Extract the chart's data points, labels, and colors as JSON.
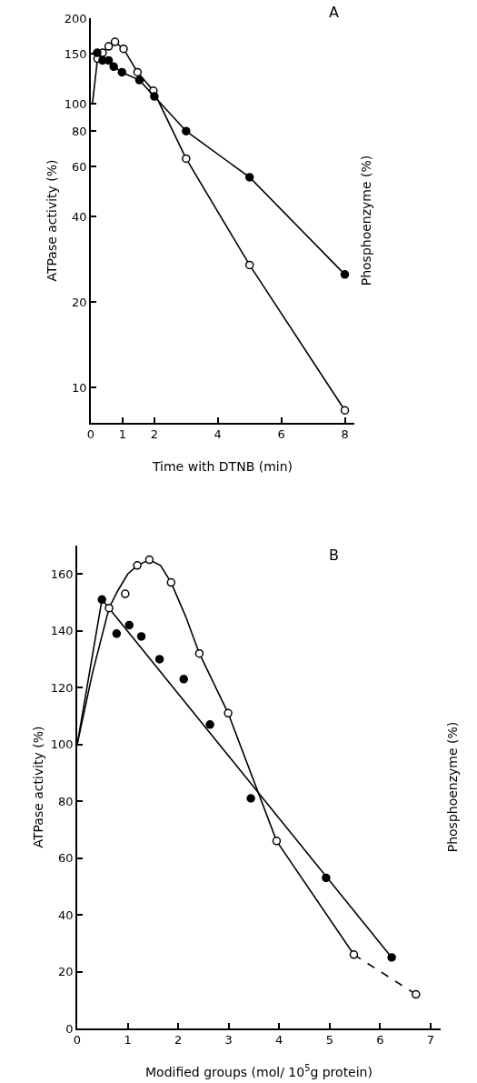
{
  "chart_data": [
    {
      "type": "line",
      "title": "A",
      "xlabel": "Time with DTNB (min)",
      "ylabel": "ATPase activity (%)",
      "y2label": "Phosphoenzyme (%)",
      "log": "y",
      "grid": false,
      "xlim": [
        0,
        8.3
      ],
      "xticks": [
        0,
        1,
        2,
        4,
        6,
        8
      ],
      "ylim": [
        7.5,
        200
      ],
      "yticks": [
        10,
        20,
        40,
        60,
        80,
        100,
        150,
        200
      ],
      "series": [
        {
          "marker": "none",
          "color": "#000000",
          "x": [
            0.05,
            0.21
          ],
          "values": [
            100,
            144
          ]
        },
        {
          "marker": "none",
          "color": "#000000",
          "x": [
            0.21,
            0.37,
            0.56,
            0.76,
            1.03,
            1.47,
            1.97,
            3,
            5,
            8
          ],
          "values": [
            144,
            151,
            159,
            165,
            156,
            129,
            111,
            64,
            27,
            8.3
          ]
        },
        {
          "type": "scatter",
          "marker": "circle",
          "color": "#ffffff",
          "x": [
            0.21,
            0.37,
            0.56,
            0.76,
            1.03,
            1.47,
            1.97,
            3,
            5,
            8
          ],
          "values": [
            144,
            151,
            159,
            165,
            156,
            129,
            111,
            64,
            27,
            8.3
          ]
        },
        {
          "marker": "circle",
          "color": "#000000",
          "x": [
            0.2,
            0.37,
            0.56,
            0.72,
            0.98,
            1.53,
            2,
            3,
            5,
            8
          ],
          "values": [
            151,
            142,
            142,
            135,
            129,
            121,
            106,
            80,
            55,
            25
          ]
        }
      ]
    },
    {
      "type": "line",
      "title": "B",
      "xlabel": "Modified groups (mol/ 10$^{5}$g protein)",
      "ylabel": "ATPase activity (%)",
      "y2label": "Phosphoenzyme (%)",
      "grid": false,
      "xlim": [
        0,
        7.2
      ],
      "xticks": [
        0,
        1,
        2,
        3,
        4,
        5,
        6,
        7
      ],
      "ylim": [
        0,
        170
      ],
      "yticks": [
        0,
        20,
        40,
        60,
        80,
        100,
        120,
        140,
        160
      ],
      "series": [
        {
          "marker": "none",
          "color": "#000000",
          "x": [
            0,
            0.49,
            6.23
          ],
          "values": [
            100,
            151,
            25
          ]
        },
        {
          "type": "scatter",
          "marker": "circle",
          "color": "#000000",
          "x": [
            0.49,
            0.78,
            1.03,
            1.27,
            1.63,
            2.11,
            2.63,
            3.44,
            4.93,
            6.23
          ],
          "values": [
            151,
            139,
            142,
            138,
            130,
            123,
            107,
            81,
            53,
            25
          ]
        },
        {
          "marker": "none",
          "color": "#000000",
          "x": [
            0,
            0.3,
            0.63,
            0.8,
            1,
            1.19,
            1.43,
            1.65,
            1.86,
            2.15,
            2.42,
            2.99,
            3.95,
            5.48
          ],
          "values": [
            100,
            125,
            148,
            154,
            160,
            163,
            165,
            163,
            157,
            145,
            132,
            111,
            66,
            26
          ]
        },
        {
          "marker": "none",
          "line_style": "dashed",
          "color": "#000000",
          "x": [
            5.48,
            6.71
          ],
          "values": [
            26,
            12
          ]
        },
        {
          "type": "scatter",
          "marker": "circle",
          "color": "#ffffff",
          "x": [
            0.63,
            0.95,
            1.19,
            1.43,
            1.86,
            2.42,
            2.99,
            3.95,
            5.48,
            6.71
          ],
          "values": [
            148,
            153,
            163,
            165,
            157,
            132,
            111,
            66,
            26,
            12
          ]
        }
      ]
    }
  ]
}
